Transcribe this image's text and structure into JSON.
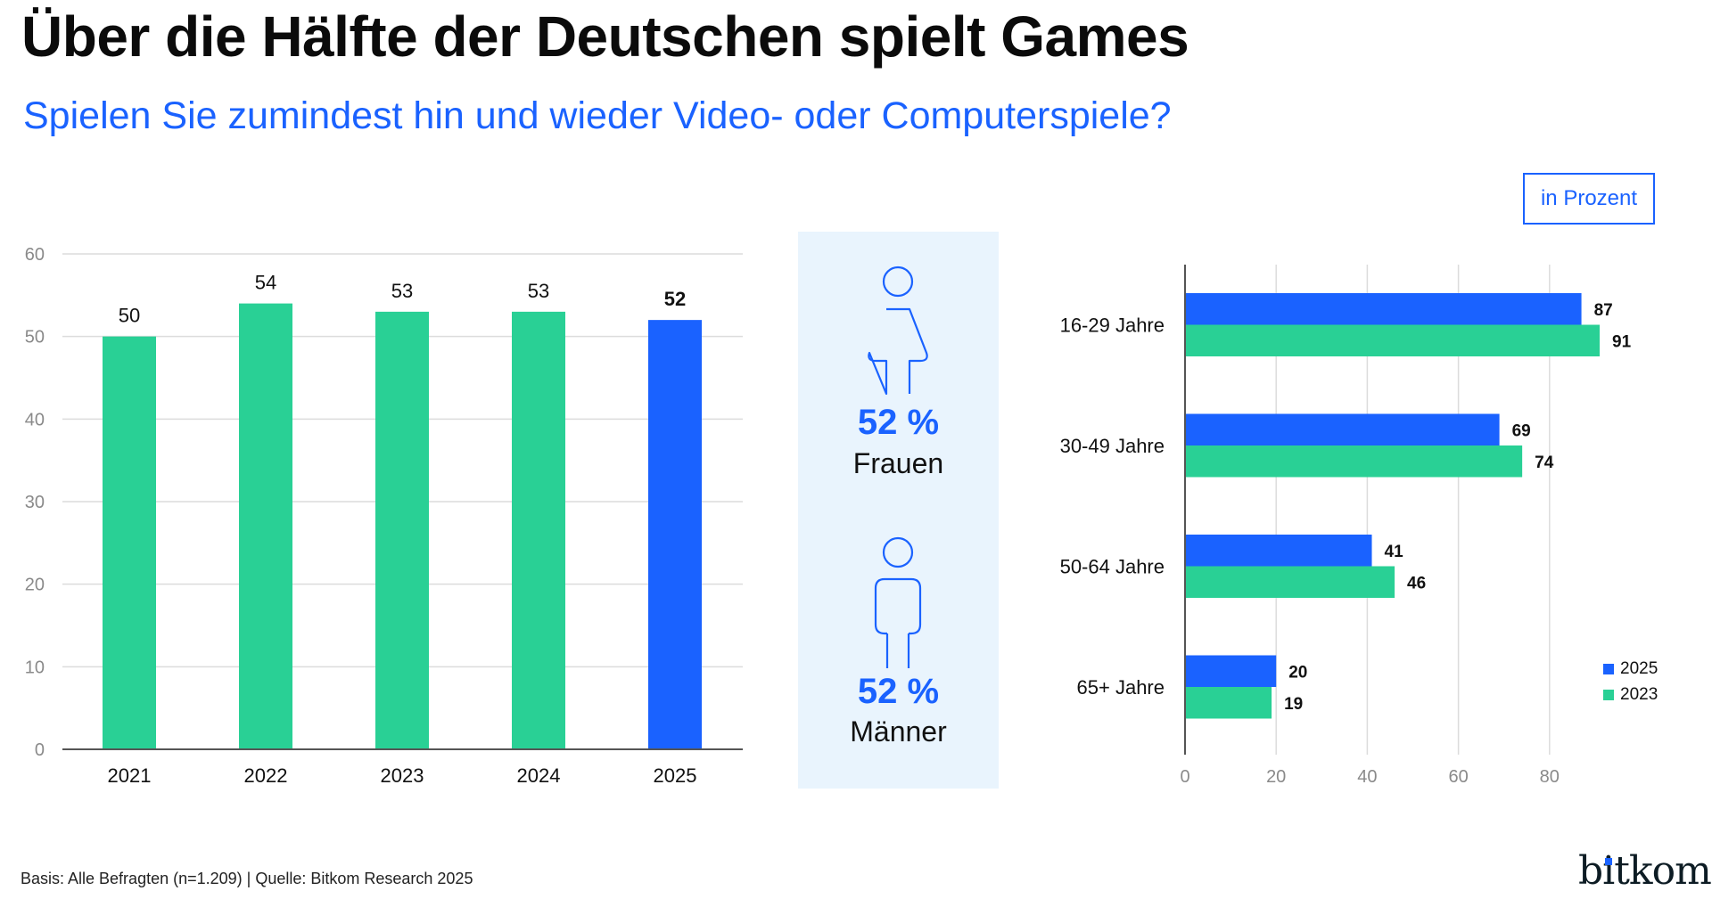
{
  "header": {
    "title": "Über die Hälfte der Deutschen spielt Games",
    "subtitle": "Spielen Sie zumindest hin und wieder Video- oder Computerspiele?",
    "unit_label": "in Prozent"
  },
  "colors": {
    "blue": "#1a62ff",
    "green": "#29d095",
    "grid": "#dcdcdc",
    "axis": "#555555",
    "panel": "#e9f4fd"
  },
  "gender": {
    "women": {
      "value": "52 %",
      "label": "Frauen",
      "icon": "female-person-icon"
    },
    "men": {
      "value": "52 %",
      "label": "Männer",
      "icon": "male-person-icon"
    }
  },
  "chart_data": [
    {
      "type": "bar",
      "title": "",
      "xlabel": "",
      "ylabel": "",
      "categories": [
        "2021",
        "2022",
        "2023",
        "2024",
        "2025"
      ],
      "values": [
        50,
        54,
        53,
        53,
        52
      ],
      "highlight_index": 4,
      "ylim": [
        0,
        60
      ],
      "yticks": [
        0,
        10,
        20,
        30,
        40,
        50,
        60
      ],
      "grid": true
    },
    {
      "type": "bar",
      "orientation": "horizontal",
      "title": "",
      "categories": [
        "16-29 Jahre",
        "30-49 Jahre",
        "50-64 Jahre",
        "65+ Jahre"
      ],
      "series": [
        {
          "name": "2025",
          "values": [
            87,
            69,
            41,
            20
          ]
        },
        {
          "name": "2023",
          "values": [
            91,
            74,
            46,
            19
          ]
        }
      ],
      "xlim": [
        0,
        95
      ],
      "xticks": [
        0,
        20,
        40,
        60,
        80
      ],
      "grid": true,
      "legend": "bottom-right"
    }
  ],
  "footer": {
    "source": "Basis: Alle Befragten (n=1.209) | Quelle: Bitkom Research 2025"
  },
  "logo": {
    "text": "bitkom"
  }
}
